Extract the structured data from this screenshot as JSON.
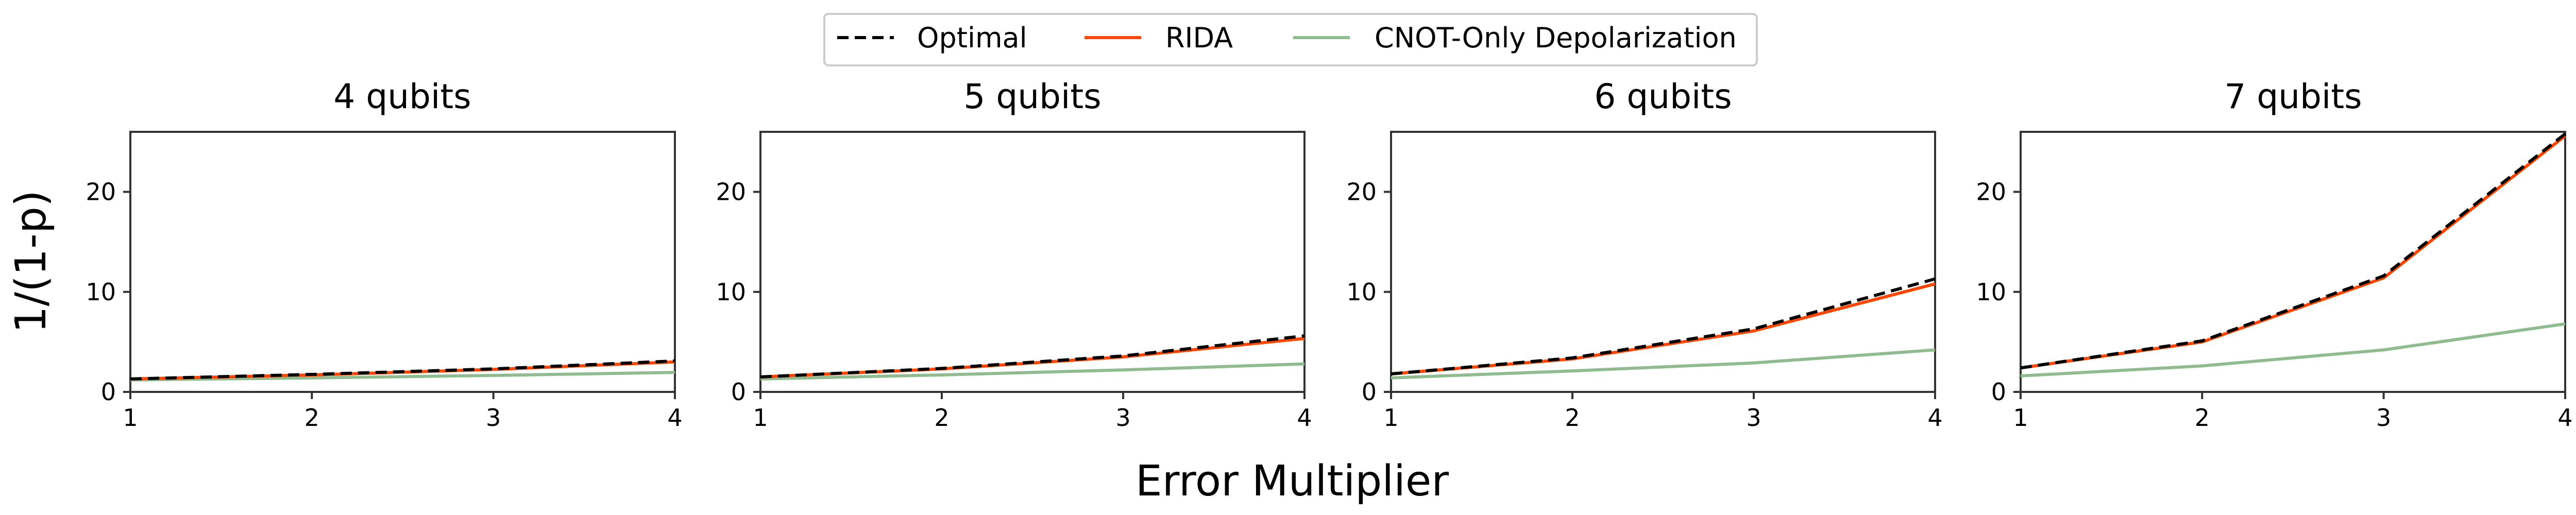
{
  "chart_data": {
    "type": "line",
    "layout": "1x4 small multiples, shared axes",
    "xlabel": "Error Multiplier",
    "ylabel": "1/(1-p)",
    "xlim": [
      1,
      4
    ],
    "ylim": [
      0,
      26
    ],
    "xticks": [
      1,
      2,
      3,
      4
    ],
    "yticks": [
      0,
      10,
      20
    ],
    "grid": false,
    "legend": {
      "placement": "top-center",
      "entries": [
        {
          "name": "Optimal",
          "color": "#000000",
          "style": "dashed"
        },
        {
          "name": "RIDA",
          "color": "#ff4500",
          "style": "solid"
        },
        {
          "name": "CNOT-Only Depolarization",
          "color": "#8fbc8f",
          "style": "solid"
        }
      ]
    },
    "panels": [
      {
        "title": "4 qubits",
        "x": [
          1,
          2,
          3,
          4
        ],
        "series": [
          {
            "name": "Optimal",
            "values": [
              1.3,
              1.75,
              2.3,
              3.1
            ]
          },
          {
            "name": "RIDA",
            "values": [
              1.3,
              1.7,
              2.25,
              3.0
            ]
          },
          {
            "name": "CNOT-Only Depolarization",
            "values": [
              1.2,
              1.4,
              1.65,
              1.95
            ]
          }
        ]
      },
      {
        "title": "5 qubits",
        "x": [
          1,
          2,
          3,
          4
        ],
        "series": [
          {
            "name": "Optimal",
            "values": [
              1.5,
              2.35,
              3.6,
              5.6
            ]
          },
          {
            "name": "RIDA",
            "values": [
              1.5,
              2.3,
              3.5,
              5.35
            ]
          },
          {
            "name": "CNOT-Only Depolarization",
            "values": [
              1.3,
              1.7,
              2.2,
              2.8
            ]
          }
        ]
      },
      {
        "title": "6 qubits",
        "x": [
          1,
          2,
          3,
          4
        ],
        "series": [
          {
            "name": "Optimal",
            "values": [
              1.8,
              3.4,
              6.3,
              11.3
            ]
          },
          {
            "name": "RIDA",
            "values": [
              1.8,
              3.3,
              6.1,
              10.8
            ]
          },
          {
            "name": "CNOT-Only Depolarization",
            "values": [
              1.4,
              2.1,
              2.9,
              4.2
            ]
          }
        ]
      },
      {
        "title": "7 qubits",
        "x": [
          1,
          2,
          3,
          4
        ],
        "series": [
          {
            "name": "Optimal",
            "values": [
              2.4,
              5.1,
              11.6,
              25.8
            ]
          },
          {
            "name": "RIDA",
            "values": [
              2.4,
              5.0,
              11.4,
              25.6
            ]
          },
          {
            "name": "CNOT-Only Depolarization",
            "values": [
              1.6,
              2.6,
              4.2,
              6.8
            ]
          }
        ]
      }
    ]
  }
}
